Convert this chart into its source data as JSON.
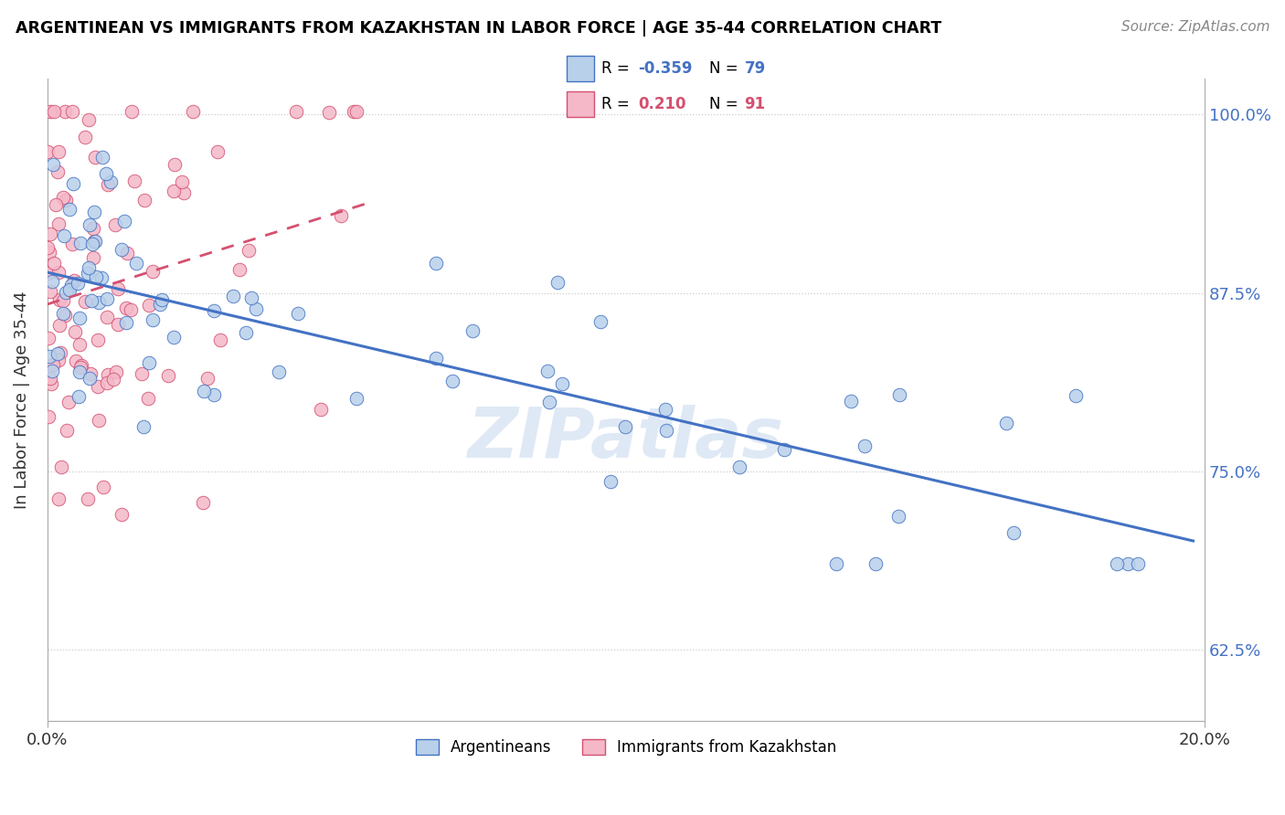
{
  "title": "ARGENTINEAN VS IMMIGRANTS FROM KAZAKHSTAN IN LABOR FORCE | AGE 35-44 CORRELATION CHART",
  "source": "Source: ZipAtlas.com",
  "ylabel": "In Labor Force | Age 35-44",
  "xlim": [
    0.0,
    0.2
  ],
  "ylim": [
    0.575,
    1.025
  ],
  "yticks": [
    0.625,
    0.75,
    0.875,
    1.0
  ],
  "ytick_labels": [
    "62.5%",
    "75.0%",
    "87.5%",
    "100.0%"
  ],
  "xticks": [
    0.0,
    0.2
  ],
  "xtick_labels": [
    "0.0%",
    "20.0%"
  ],
  "legend_r_blue": "-0.359",
  "legend_n_blue": "79",
  "legend_r_pink": "0.210",
  "legend_n_pink": "91",
  "blue_fill": "#b8d0ea",
  "blue_edge": "#4472c4",
  "pink_fill": "#f4b8c8",
  "pink_edge": "#d45070",
  "blue_line_color": "#4472c4",
  "pink_line_color": "#d45070",
  "watermark": "ZIPatlas"
}
